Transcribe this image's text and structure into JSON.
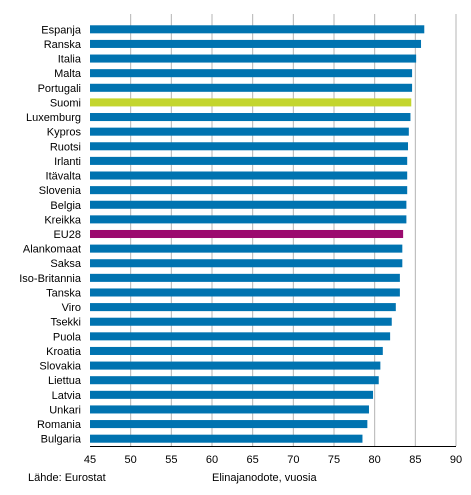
{
  "chart_data": {
    "type": "bar",
    "orientation": "horizontal",
    "title": "",
    "xlabel": "Elinajanodote, vuosia",
    "ylabel": "",
    "source": "Lähde: Eurostat",
    "xlim": [
      45,
      90
    ],
    "x_ticks": [
      45,
      50,
      55,
      60,
      65,
      70,
      75,
      80,
      85,
      90
    ],
    "grid": "vertical",
    "legend": "none",
    "categories": [
      "Espanja",
      "Ranska",
      "Italia",
      "Malta",
      "Portugali",
      "Suomi",
      "Luxemburg",
      "Kypros",
      "Ruotsi",
      "Irlanti",
      "Itävalta",
      "Slovenia",
      "Belgia",
      "Kreikka",
      "EU28",
      "Alankomaat",
      "Saksa",
      "Iso-Britannia",
      "Tanska",
      "Viro",
      "Tsekki",
      "Puola",
      "Kroatia",
      "Slovakia",
      "Liettua",
      "Latvia",
      "Unkari",
      "Romania",
      "Bulgaria"
    ],
    "values": [
      86.1,
      85.7,
      85.1,
      84.6,
      84.6,
      84.5,
      84.4,
      84.2,
      84.1,
      84.0,
      84.0,
      84.0,
      83.9,
      83.9,
      83.5,
      83.4,
      83.4,
      83.1,
      83.1,
      82.6,
      82.1,
      81.9,
      81.0,
      80.7,
      80.5,
      79.8,
      79.3,
      79.1,
      78.5
    ],
    "colors": {
      "default": "#0073b0",
      "highlight_Suomi": "#c3d52d",
      "highlight_EU28": "#9b0a6e",
      "grid": "#b4b4b4",
      "axis": "#000000"
    }
  }
}
